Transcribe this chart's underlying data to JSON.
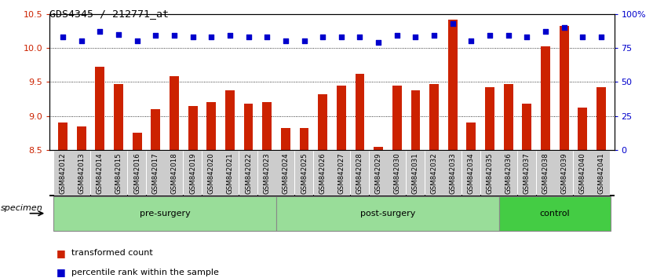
{
  "title": "GDS4345 / 212771_at",
  "samples": [
    "GSM842012",
    "GSM842013",
    "GSM842014",
    "GSM842015",
    "GSM842016",
    "GSM842017",
    "GSM842018",
    "GSM842019",
    "GSM842020",
    "GSM842021",
    "GSM842022",
    "GSM842023",
    "GSM842024",
    "GSM842025",
    "GSM842026",
    "GSM842027",
    "GSM842028",
    "GSM842029",
    "GSM842030",
    "GSM842031",
    "GSM842032",
    "GSM842033",
    "GSM842034",
    "GSM842035",
    "GSM842036",
    "GSM842037",
    "GSM842038",
    "GSM842039",
    "GSM842040",
    "GSM842041"
  ],
  "bar_values": [
    8.9,
    8.85,
    9.72,
    9.47,
    8.75,
    9.1,
    9.58,
    9.15,
    9.2,
    9.38,
    9.18,
    9.2,
    8.83,
    8.82,
    9.32,
    9.45,
    9.62,
    8.55,
    9.45,
    9.38,
    9.47,
    10.42,
    8.9,
    9.42,
    9.47,
    9.18,
    10.02,
    10.32,
    9.12,
    9.43
  ],
  "percentile_values": [
    83,
    80,
    87,
    85,
    80,
    84,
    84,
    83,
    83,
    84,
    83,
    83,
    80,
    80,
    83,
    83,
    83,
    79,
    84,
    83,
    84,
    93,
    80,
    84,
    84,
    83,
    87,
    90,
    83,
    83
  ],
  "bar_color": "#cc2200",
  "percentile_color": "#0000cc",
  "ylim_left": [
    8.5,
    10.5
  ],
  "ylim_right": [
    0,
    100
  ],
  "yticks_left": [
    8.5,
    9.0,
    9.5,
    10.0,
    10.5
  ],
  "yticks_right": [
    0,
    25,
    50,
    75,
    100
  ],
  "ytick_labels_right": [
    "0",
    "25",
    "50",
    "75",
    "100%"
  ],
  "groups": [
    {
      "label": "pre-surgery",
      "start": 0,
      "end": 12,
      "color": "#99dd99"
    },
    {
      "label": "post-surgery",
      "start": 12,
      "end": 24,
      "color": "#99dd99"
    },
    {
      "label": "control",
      "start": 24,
      "end": 30,
      "color": "#44cc44"
    }
  ],
  "specimen_label": "specimen",
  "legend_items": [
    {
      "label": "transformed count",
      "color": "#cc2200"
    },
    {
      "label": "percentile rank within the sample",
      "color": "#0000cc"
    }
  ]
}
